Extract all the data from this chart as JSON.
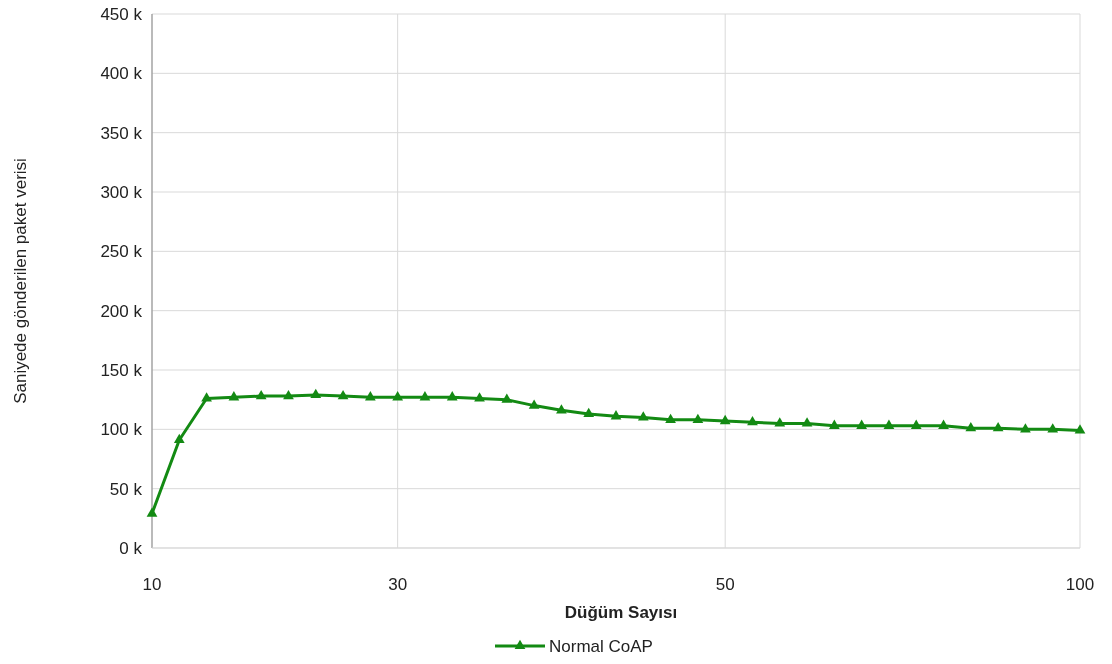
{
  "chart_data": {
    "type": "line",
    "xlabel": "Düğüm Sayısı",
    "ylabel": "Saniyede gönderilen paket verisi",
    "categories": [
      "10",
      null,
      null,
      null,
      null,
      null,
      null,
      null,
      null,
      "30",
      null,
      null,
      null,
      null,
      null,
      null,
      null,
      null,
      null,
      null,
      null,
      "50",
      null,
      null,
      null,
      null,
      null,
      null,
      null,
      null,
      null,
      null,
      null,
      null,
      "100"
    ],
    "ylim": [
      0,
      450000
    ],
    "yticks": [
      {
        "value": 0,
        "label": "0 k"
      },
      {
        "value": 50000,
        "label": "50 k"
      },
      {
        "value": 100000,
        "label": "100 k"
      },
      {
        "value": 150000,
        "label": "150 k"
      },
      {
        "value": 200000,
        "label": "200 k"
      },
      {
        "value": 250000,
        "label": "250 k"
      },
      {
        "value": 300000,
        "label": "300 k"
      },
      {
        "value": 350000,
        "label": "350 k"
      },
      {
        "value": 400000,
        "label": "400 k"
      },
      {
        "value": 450000,
        "label": "450 k"
      }
    ],
    "grid": true,
    "legend": "bottom",
    "marker": "triangle",
    "line_style": "solid",
    "series": [
      {
        "name": "Normal CoAP",
        "color": "#138a13",
        "values": [
          29000,
          91000,
          126000,
          127000,
          128000,
          128000,
          129000,
          128000,
          127000,
          127000,
          127000,
          127000,
          126000,
          125000,
          120000,
          116000,
          113000,
          111000,
          110000,
          108000,
          108000,
          107000,
          106000,
          105000,
          105000,
          103000,
          103000,
          103000,
          103000,
          103000,
          101000,
          101000,
          100000,
          100000,
          99000
        ]
      }
    ]
  }
}
